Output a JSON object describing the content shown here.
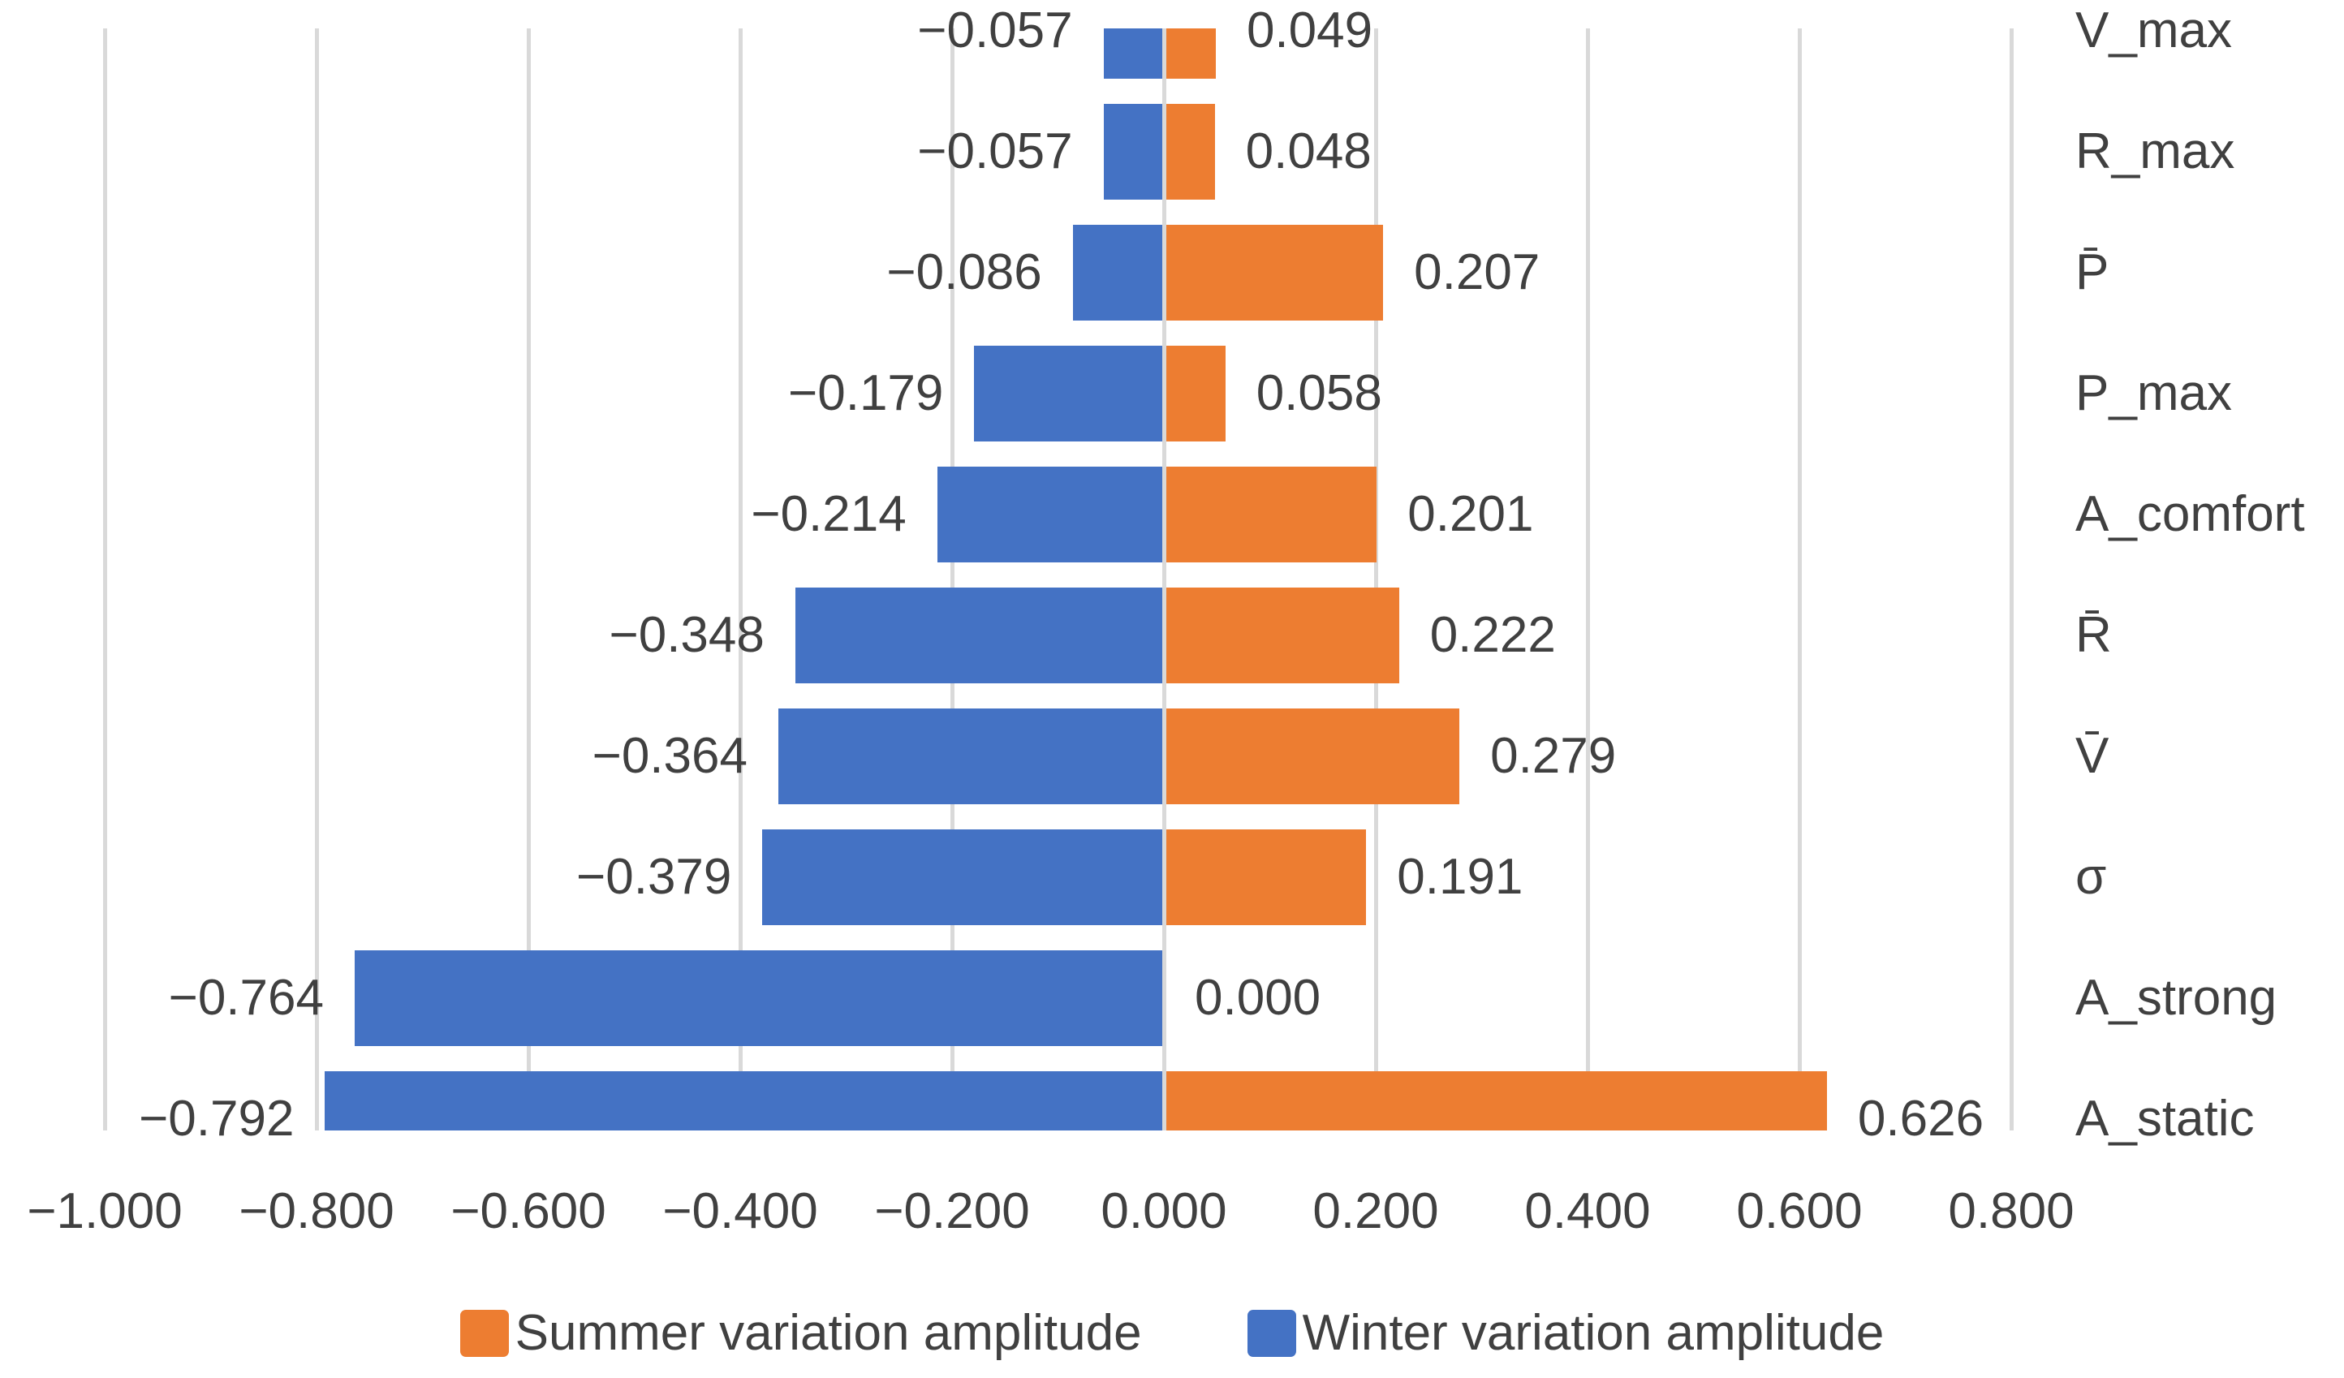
{
  "chart_data": {
    "type": "bar",
    "orientation": "horizontal-diverging",
    "title": "",
    "xlabel": "",
    "ylabel": "",
    "categories": [
      "V_max",
      "R_max",
      "P̄",
      "P_max",
      "A_comfort",
      "R̄",
      "V̄",
      "σ",
      "A_strong",
      "A_static"
    ],
    "series": [
      {
        "name": "Summer variation amplitude",
        "color": "#ED7D31",
        "values": [
          0.049,
          0.048,
          0.207,
          0.058,
          0.201,
          0.222,
          0.279,
          0.191,
          0.0,
          0.626
        ]
      },
      {
        "name": "Winter variation amplitude",
        "color": "#4472C4",
        "values": [
          -0.057,
          -0.057,
          -0.086,
          -0.179,
          -0.214,
          -0.348,
          -0.364,
          -0.379,
          -0.764,
          -0.792
        ]
      }
    ],
    "data_labels": {
      "summer": [
        "0.049",
        "0.048",
        "0.207",
        "0.058",
        "0.201",
        "0.222",
        "0.279",
        "0.191",
        "0.000",
        "0.626"
      ],
      "winter": [
        "−0.057",
        "−0.057",
        "−0.086",
        "−0.179",
        "−0.214",
        "−0.348",
        "−0.364",
        "−0.379",
        "−0.764",
        "−0.792"
      ]
    },
    "xlim": [
      -1.0,
      0.8
    ],
    "x_ticks": [
      "−1.000",
      "−0.800",
      "−0.600",
      "−0.400",
      "−0.200",
      "0.000",
      "0.200",
      "0.400",
      "0.600",
      "0.800"
    ],
    "x_tick_values": [
      -1.0,
      -0.8,
      -0.6,
      -0.4,
      -0.2,
      0.0,
      0.2,
      0.4,
      0.6,
      0.8
    ],
    "grid": true,
    "legend_position": "bottom",
    "gridline_color": "#D9D9D9",
    "text_color": "#404040"
  }
}
